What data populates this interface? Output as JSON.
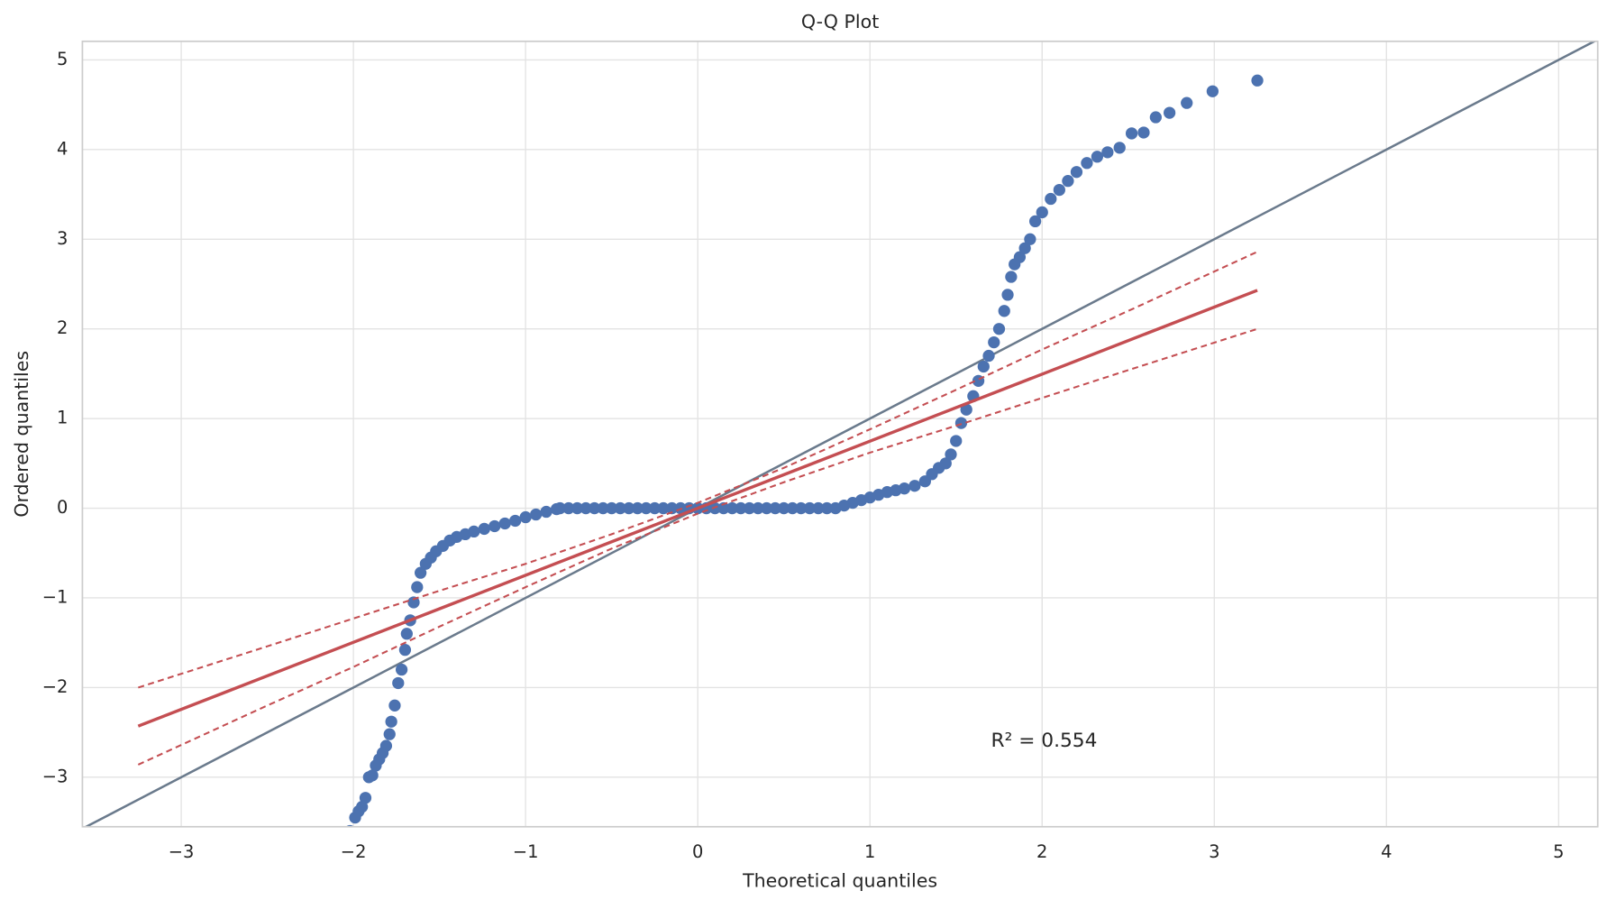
{
  "chart_data": {
    "type": "scatter",
    "title": "Q-Q Plot",
    "xlabel": "Theoretical quantiles",
    "ylabel": "Ordered quantiles",
    "annotation": "R² = 0.554",
    "xlim": [
      -3.574,
      5.227
    ],
    "ylim": [
      -3.552,
      5.207
    ],
    "xticks": [
      {
        "value": -3,
        "label": "−3"
      },
      {
        "value": -2,
        "label": "−2"
      },
      {
        "value": -1,
        "label": "−1"
      },
      0,
      1,
      2,
      3,
      4,
      5
    ],
    "yticks": [
      {
        "value": -3,
        "label": "−3"
      },
      {
        "value": -2,
        "label": "−2"
      },
      {
        "value": -1,
        "label": "−1"
      },
      0,
      1,
      2,
      3,
      4,
      5
    ],
    "grid": true,
    "points": {
      "color": "#4c72b0",
      "x": [
        -2.02,
        -1.99,
        -1.97,
        -1.95,
        -1.93,
        -1.91,
        -1.89,
        -1.87,
        -1.85,
        -1.83,
        -1.81,
        -1.79,
        -1.78,
        -1.76,
        -1.74,
        -1.72,
        -1.7,
        -1.69,
        -1.67,
        -1.65,
        -1.63,
        -1.61,
        -1.58,
        -1.55,
        -1.52,
        -1.48,
        -1.44,
        -1.4,
        -1.35,
        -1.3,
        -1.24,
        -1.18,
        -1.12,
        -1.06,
        -1.0,
        -0.94,
        -0.88,
        -0.82,
        -0.8,
        -0.75,
        -0.7,
        -0.65,
        -0.6,
        -0.55,
        -0.5,
        -0.45,
        -0.4,
        -0.35,
        -0.3,
        -0.25,
        -0.2,
        -0.15,
        -0.1,
        -0.05,
        0,
        0.05,
        0.1,
        0.15,
        0.2,
        0.25,
        0.3,
        0.35,
        0.4,
        0.45,
        0.5,
        0.55,
        0.6,
        0.65,
        0.7,
        0.75,
        0.8,
        0.85,
        0.9,
        0.95,
        1.0,
        1.05,
        1.1,
        1.15,
        1.2,
        1.26,
        1.32,
        1.36,
        1.4,
        1.44,
        1.47,
        1.5,
        1.53,
        1.56,
        1.6,
        1.63,
        1.66,
        1.69,
        1.72,
        1.75,
        1.78,
        1.8,
        1.82,
        1.84,
        1.87,
        1.9,
        1.93,
        1.96,
        2.0,
        2.05,
        2.1,
        2.15,
        2.2,
        2.26,
        2.32,
        2.38,
        2.45,
        2.52,
        2.59,
        2.66,
        2.74,
        2.84,
        2.99,
        3.25
      ],
      "values": [
        -3.6,
        -3.45,
        -3.38,
        -3.33,
        -3.23,
        -3.0,
        -2.98,
        -2.87,
        -2.8,
        -2.73,
        -2.65,
        -2.52,
        -2.38,
        -2.2,
        -1.95,
        -1.8,
        -1.58,
        -1.4,
        -1.25,
        -1.05,
        -0.88,
        -0.72,
        -0.62,
        -0.55,
        -0.48,
        -0.42,
        -0.36,
        -0.32,
        -0.29,
        -0.26,
        -0.23,
        -0.2,
        -0.17,
        -0.14,
        -0.1,
        -0.07,
        -0.04,
        -0.01,
        0,
        0,
        0,
        0,
        0,
        0,
        0,
        0,
        0,
        0,
        0,
        0,
        0,
        0,
        0,
        0,
        0,
        0,
        0,
        0,
        0,
        0,
        0,
        0,
        0,
        0,
        0,
        0,
        0,
        0,
        0,
        0,
        0,
        0.03,
        0.06,
        0.09,
        0.12,
        0.15,
        0.18,
        0.2,
        0.22,
        0.25,
        0.3,
        0.38,
        0.45,
        0.5,
        0.6,
        0.75,
        0.95,
        1.1,
        1.25,
        1.42,
        1.58,
        1.7,
        1.85,
        2.0,
        2.2,
        2.38,
        2.58,
        2.72,
        2.8,
        2.9,
        3.0,
        3.2,
        3.3,
        3.45,
        3.55,
        3.65,
        3.75,
        3.85,
        3.92,
        3.97,
        4.02,
        4.18,
        4.19,
        4.36,
        4.41,
        4.52,
        4.65,
        4.77
      ]
    },
    "reference_line": {
      "color": "#6a7a8c",
      "x": [
        -3.574,
        5.227
      ],
      "values": [
        -3.574,
        5.227
      ]
    },
    "fit_line": {
      "color": "#c44e52",
      "x": [
        -3.25,
        3.25
      ],
      "values": [
        -2.43,
        2.43
      ]
    },
    "confidence_band": {
      "color": "#c44e52",
      "x": [
        -3.25,
        -2.5,
        -2,
        -1.5,
        -1,
        -0.5,
        0,
        0.5,
        1,
        1.5,
        2,
        2.5,
        3.25
      ],
      "upper": [
        -2.0,
        -1.54,
        -1.23,
        -0.92,
        -0.62,
        -0.29,
        0.06,
        0.45,
        0.88,
        1.32,
        1.77,
        2.2,
        2.86
      ],
      "lower": [
        -2.86,
        -2.2,
        -1.77,
        -1.32,
        -0.88,
        -0.45,
        -0.06,
        0.29,
        0.62,
        0.92,
        1.23,
        1.54,
        2.0
      ]
    }
  }
}
